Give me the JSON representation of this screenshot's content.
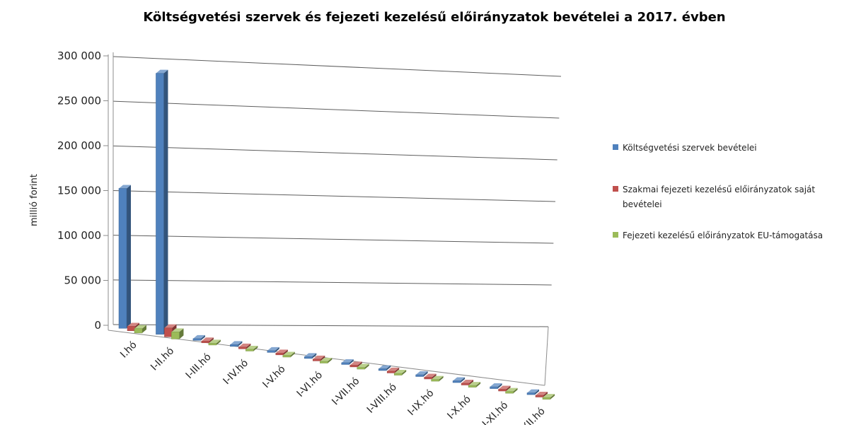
{
  "chart_data": {
    "type": "bar",
    "title": "Költségvetési szervek és fejezeti kezelésű előirányzatok bevételei a 2017. évben",
    "xlabel": "",
    "ylabel": "millió forint",
    "ylim": [
      0,
      300000
    ],
    "yticks": [
      0,
      50000,
      100000,
      150000,
      200000,
      250000,
      300000
    ],
    "ytick_labels": [
      "0",
      "50 000",
      "100 000",
      "150 000",
      "200 000",
      "250 000",
      "300 000"
    ],
    "categories": [
      "I.hó",
      "I-II.hó",
      "I-III.hó",
      "I-IV.hó",
      "I-V.hó",
      "I-VI.hó",
      "I-VII.hó",
      "I-VIII.hó",
      "I-IX.hó",
      "I-X.hó",
      "I-XI.hó",
      "I-XII.hó"
    ],
    "series": [
      {
        "name": "Költségvetési szervek bevételei",
        "color": "#4f81bd",
        "values": [
          157000,
          293000,
          0,
          0,
          0,
          0,
          0,
          0,
          0,
          0,
          0,
          0
        ]
      },
      {
        "name": "Szakmai fejezeti kezelésű előirányzatok saját bevételei",
        "color": "#c0504d",
        "values": [
          5000,
          10000,
          0,
          0,
          0,
          0,
          0,
          0,
          0,
          0,
          0,
          0
        ]
      },
      {
        "name": "Fejezeti kezelésű előirányzatok EU-támogatása",
        "color": "#9bbb59",
        "values": [
          5000,
          8000,
          0,
          0,
          0,
          0,
          0,
          0,
          0,
          0,
          0,
          0
        ]
      }
    ],
    "grid": true,
    "legend_position": "right",
    "view": "3d"
  }
}
